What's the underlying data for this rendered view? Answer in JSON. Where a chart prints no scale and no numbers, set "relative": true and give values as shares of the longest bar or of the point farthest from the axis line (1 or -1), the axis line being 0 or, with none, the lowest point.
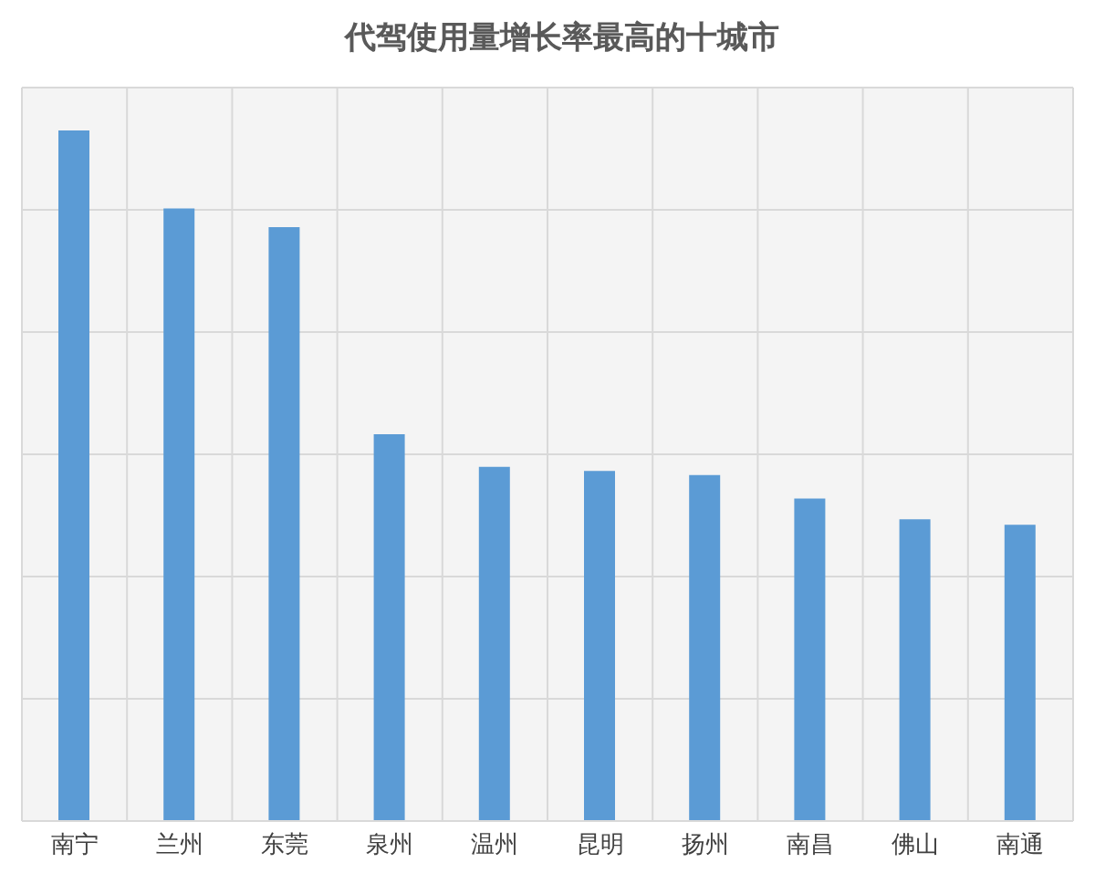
{
  "chart_data": {
    "type": "bar",
    "title": "代驾使用量增长率最高的十城市",
    "categories": [
      "南宁",
      "兰州",
      "东莞",
      "泉州",
      "温州",
      "昆明",
      "扬州",
      "南昌",
      "佛山",
      "南通"
    ],
    "values": [
      1,
      0.887,
      0.86,
      0.56,
      0.513,
      0.507,
      0.501,
      0.467,
      0.437,
      0.429
    ],
    "color": "#5b9bd5",
    "relative": true,
    "grid": true
  }
}
